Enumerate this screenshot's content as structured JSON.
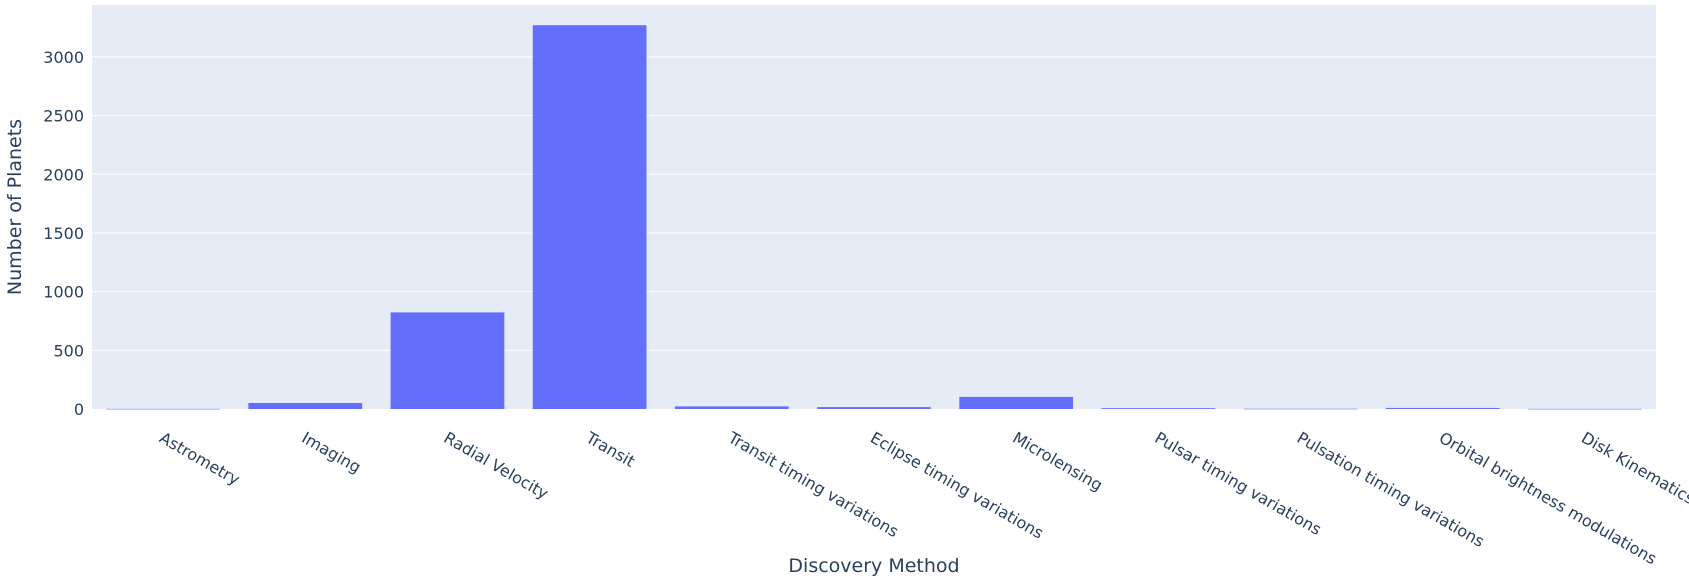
{
  "chart_data": {
    "type": "bar",
    "title": "",
    "xlabel": "Discovery Method",
    "ylabel": "Number of Planets",
    "categories": [
      "Astrometry",
      "Imaging",
      "Radial Velocity",
      "Transit",
      "Transit timing variations",
      "Eclipse timing variations",
      "Microlensing",
      "Pulsar timing variations",
      "Pulsation timing variations",
      "Orbital brightness modulations",
      "Disk Kinematics"
    ],
    "values": [
      1,
      51,
      823,
      3270,
      22,
      16,
      103,
      7,
      2,
      9,
      1
    ],
    "ylim": [
      0,
      3442
    ],
    "yticks": [
      0,
      500,
      1000,
      1500,
      2000,
      2500,
      3000
    ],
    "grid": true,
    "bar_color": "#636efa",
    "plot_background": "#e5ecf6",
    "gridline_color": "#ffffff",
    "text_color": "#2a3f5f"
  }
}
